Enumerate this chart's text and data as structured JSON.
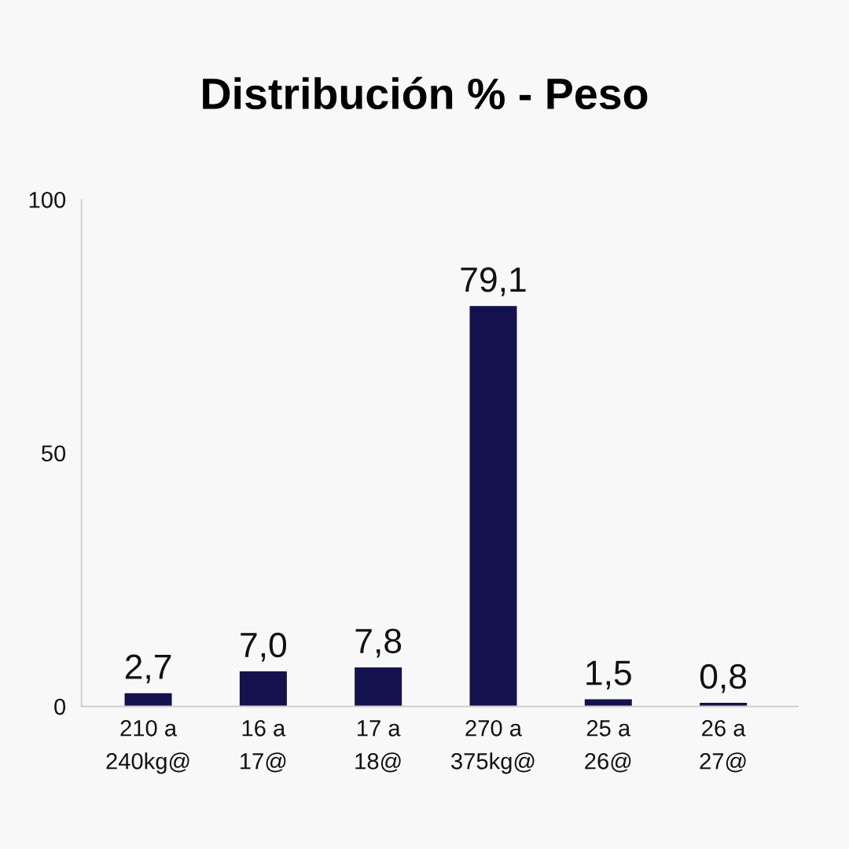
{
  "chart_data": {
    "type": "bar",
    "title": "Distribución % - Peso",
    "categories": [
      "210 a\n240kg@",
      "16 a\n17@",
      "17 a\n18@",
      "270 a\n375kg@",
      "25 a\n26@",
      "26 a\n27@"
    ],
    "values": [
      2.7,
      7.0,
      7.8,
      79.1,
      1.5,
      0.8
    ],
    "value_labels": [
      "2,7",
      "7,0",
      "7,8",
      "79,1",
      "1,5",
      "0,8"
    ],
    "color": "#13124f",
    "ylim": [
      0,
      100
    ],
    "yticks": [
      0,
      50,
      100
    ]
  }
}
